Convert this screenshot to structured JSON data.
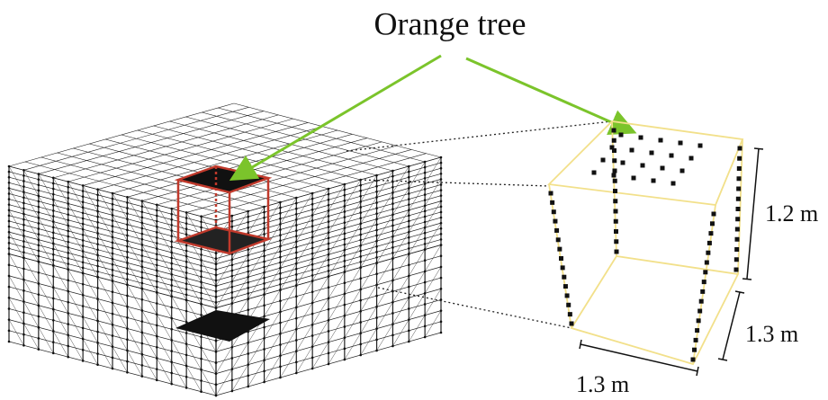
{
  "title": "Orange tree",
  "dimensions": {
    "height": "1.2 m",
    "depth": "1.3 m",
    "width": "1.3 m"
  }
}
